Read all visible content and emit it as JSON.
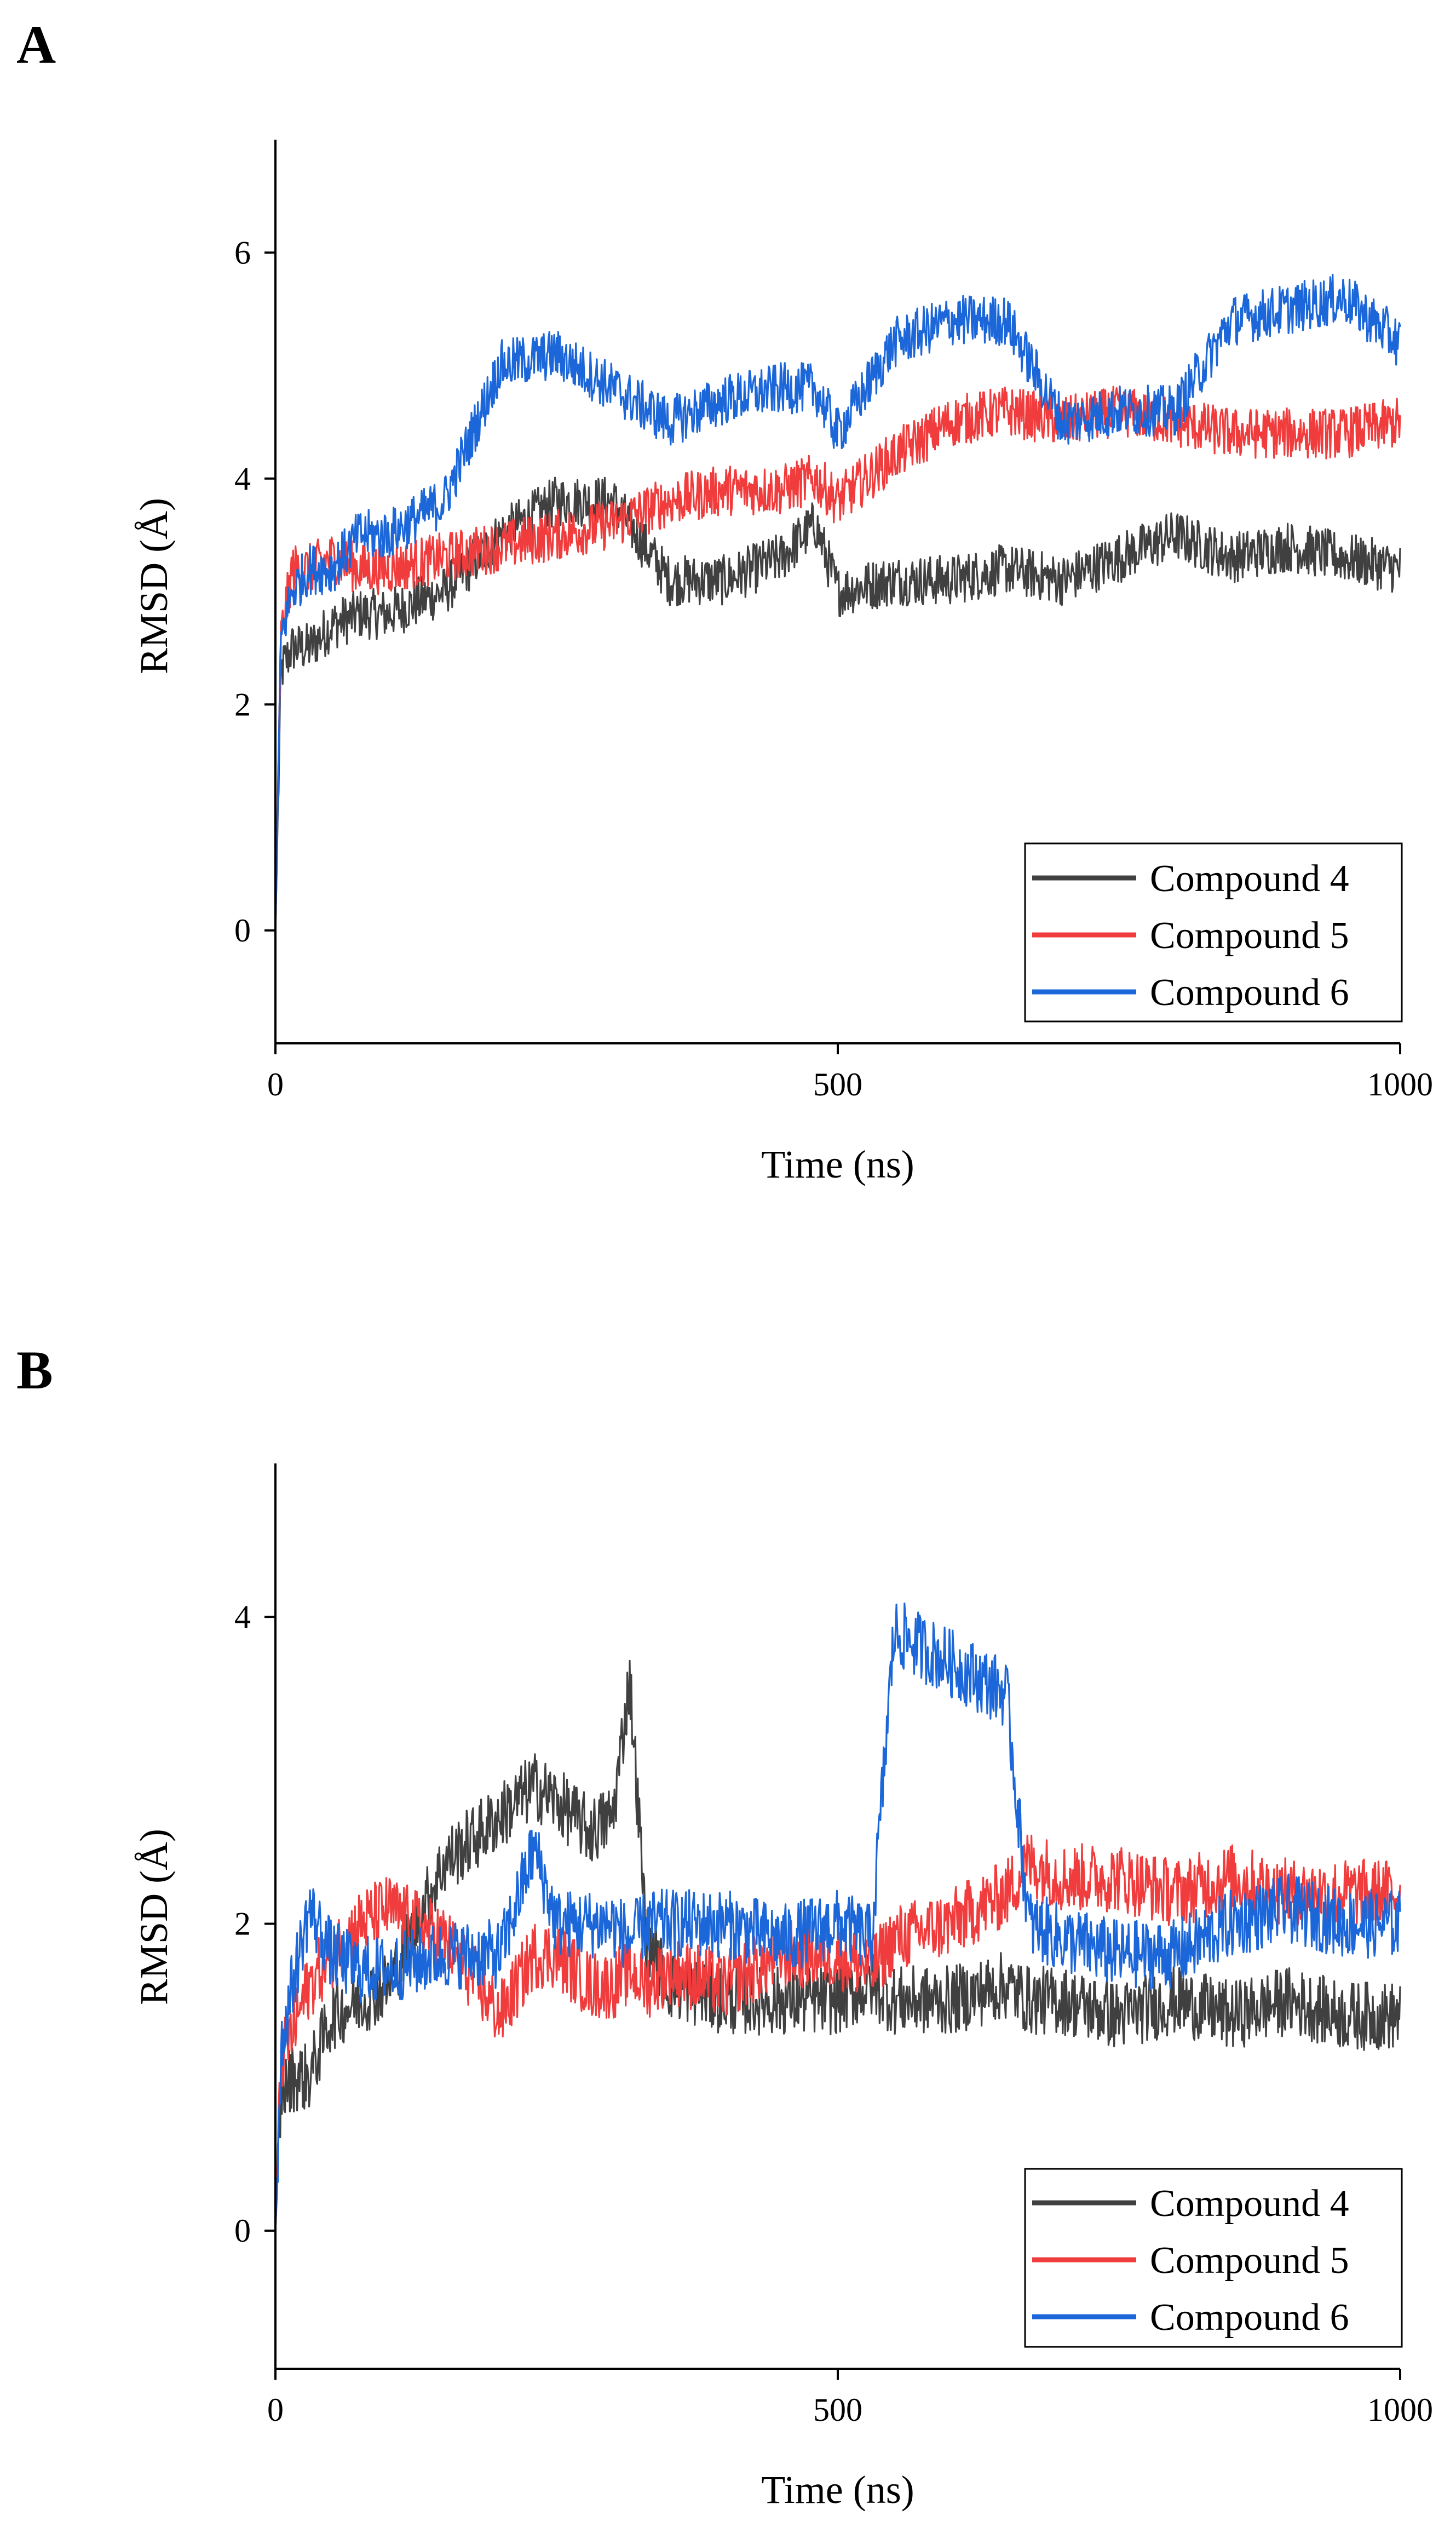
{
  "colors": {
    "compound4": "#404040",
    "compound5": "#f03c3c",
    "compound6": "#1b66d8"
  },
  "chart_data": [
    {
      "panel": "A",
      "type": "line",
      "xlabel": "Time (ns)",
      "ylabel": "RMSD (Å)",
      "xlim": [
        0,
        1000
      ],
      "ylim": [
        -1,
        7
      ],
      "xticks": [
        0,
        500,
        1000
      ],
      "yticks": [
        0,
        2,
        4,
        6
      ],
      "legend_position": "bottom-right",
      "x": [
        0,
        5,
        15,
        30,
        50,
        75,
        100,
        150,
        200,
        250,
        300,
        350,
        400,
        450,
        480,
        500,
        550,
        600,
        650,
        700,
        750,
        800,
        850,
        900,
        950,
        1000
      ],
      "series": [
        {
          "name": "Compound 4",
          "color_key": "compound4",
          "values": [
            0,
            2.3,
            2.5,
            2.5,
            2.7,
            2.8,
            2.8,
            3.0,
            3.5,
            3.8,
            3.8,
            3.1,
            3.1,
            3.3,
            3.6,
            3.0,
            3.1,
            3.1,
            3.2,
            3.1,
            3.3,
            3.5,
            3.3,
            3.4,
            3.3,
            3.2
          ]
        },
        {
          "name": "Compound 5",
          "color_key": "compound5",
          "values": [
            0,
            2.6,
            3.2,
            3.2,
            3.3,
            3.2,
            3.2,
            3.3,
            3.4,
            3.5,
            3.6,
            3.8,
            3.9,
            3.9,
            4.0,
            3.8,
            4.2,
            4.5,
            4.6,
            4.5,
            4.6,
            4.5,
            4.4,
            4.4,
            4.4,
            4.5
          ]
        },
        {
          "name": "Compound 6",
          "color_key": "compound6",
          "values": [
            0,
            2.6,
            3.0,
            3.2,
            3.2,
            3.5,
            3.5,
            3.8,
            5.0,
            5.1,
            4.8,
            4.5,
            4.7,
            4.8,
            4.8,
            4.4,
            5.2,
            5.4,
            5.4,
            4.5,
            4.6,
            4.6,
            5.4,
            5.5,
            5.6,
            5.2
          ]
        }
      ]
    },
    {
      "panel": "B",
      "type": "line",
      "xlabel": "Time (ns)",
      "ylabel": "RMSD (Å)",
      "xlim": [
        0,
        1000
      ],
      "ylim": [
        -0.9,
        5
      ],
      "xticks": [
        0,
        500,
        1000
      ],
      "yticks": [
        0,
        2,
        4
      ],
      "legend_position": "bottom-right",
      "x": [
        0,
        5,
        15,
        30,
        50,
        75,
        100,
        150,
        200,
        230,
        250,
        280,
        300,
        315,
        330,
        350,
        400,
        450,
        500,
        530,
        550,
        600,
        650,
        670,
        700,
        750,
        800,
        850,
        900,
        950,
        1000
      ],
      "series": [
        {
          "name": "Compound 4",
          "color_key": "compound4",
          "values": [
            0,
            0.9,
            1.0,
            1.0,
            1.4,
            1.5,
            1.6,
            2.4,
            2.7,
            2.9,
            2.8,
            2.6,
            2.7,
            3.6,
            1.9,
            1.6,
            1.5,
            1.5,
            1.5,
            1.6,
            1.5,
            1.5,
            1.6,
            1.5,
            1.5,
            1.4,
            1.5,
            1.4,
            1.5,
            1.4,
            1.4
          ]
        },
        {
          "name": "Compound 5",
          "color_key": "compound5",
          "values": [
            0,
            1.1,
            1.3,
            1.6,
            1.8,
            2.0,
            2.1,
            1.9,
            1.4,
            1.8,
            1.8,
            1.6,
            1.6,
            1.7,
            1.6,
            1.7,
            1.6,
            1.8,
            1.8,
            1.7,
            1.9,
            2.0,
            2.2,
            2.4,
            2.3,
            2.3,
            2.2,
            2.3,
            2.2,
            2.2,
            2.2
          ]
        },
        {
          "name": "Compound 6",
          "color_key": "compound6",
          "values": [
            0,
            1.2,
            1.6,
            2.1,
            1.8,
            1.7,
            1.7,
            1.8,
            1.8,
            2.5,
            2.0,
            2.0,
            2.0,
            1.9,
            2.0,
            2.0,
            2.0,
            1.9,
            2.0,
            1.9,
            3.9,
            3.7,
            3.5,
            2.0,
            1.9,
            1.8,
            1.8,
            2.0,
            2.1,
            2.0,
            2.0
          ]
        }
      ]
    }
  ]
}
